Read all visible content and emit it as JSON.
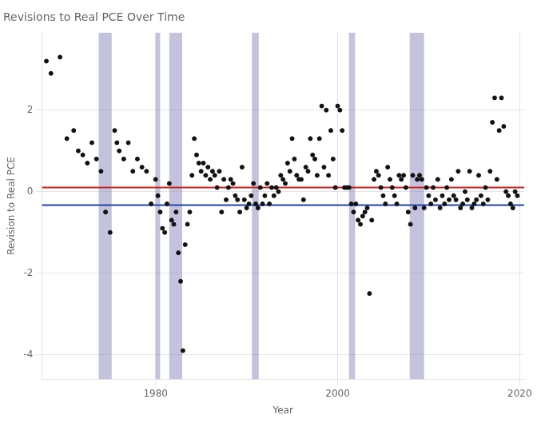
{
  "chart_data": {
    "type": "scatter",
    "title": "Revisions to Real PCE Over Time",
    "xlabel": "Year",
    "ylabel": "Revision to Real PCE",
    "color": "#111111",
    "grid": true,
    "xlim": [
      1967.5,
      2020.5
    ],
    "ylim": [
      -4.6,
      3.9
    ],
    "xticks": [
      1980,
      2000,
      2020
    ],
    "yticks": [
      -4,
      -2,
      0,
      2
    ],
    "bands": {
      "color": "#8888BB",
      "ranges": [
        [
          1973.75,
          1975.17
        ],
        [
          1980.0,
          1980.5
        ],
        [
          1981.5,
          1982.92
        ],
        [
          1990.58,
          1991.33
        ],
        [
          2001.25,
          2001.92
        ],
        [
          2007.92,
          2009.5
        ]
      ]
    },
    "hlines": [
      {
        "y": 0.1,
        "color": "#CC2222"
      },
      {
        "y": -0.33,
        "color": "#2244AA"
      }
    ],
    "x": [
      1968.0,
      1968.5,
      1969.5,
      1970.25,
      1971.0,
      1971.5,
      1972.0,
      1972.5,
      1973.0,
      1973.5,
      1974.0,
      1974.5,
      1975.0,
      1975.5,
      1975.75,
      1976.0,
      1976.5,
      1977.0,
      1977.5,
      1978.0,
      1978.5,
      1979.0,
      1979.5,
      1980.0,
      1980.25,
      1980.5,
      1980.75,
      1981.0,
      1981.25,
      1981.5,
      1981.75,
      1982.0,
      1982.25,
      1982.5,
      1982.75,
      1983.0,
      1983.25,
      1983.5,
      1983.75,
      1984.0,
      1984.25,
      1984.5,
      1984.75,
      1985.0,
      1985.25,
      1985.5,
      1985.75,
      1986.0,
      1986.25,
      1986.5,
      1986.75,
      1987.0,
      1987.25,
      1987.5,
      1987.75,
      1988.0,
      1988.25,
      1988.5,
      1988.75,
      1989.0,
      1989.25,
      1989.5,
      1989.75,
      1990.0,
      1990.25,
      1990.5,
      1990.75,
      1991.0,
      1991.25,
      1991.5,
      1991.75,
      1992.0,
      1992.25,
      1992.5,
      1992.75,
      1993.0,
      1993.25,
      1993.5,
      1993.75,
      1994.0,
      1994.25,
      1994.5,
      1994.75,
      1995.0,
      1995.25,
      1995.5,
      1995.75,
      1996.0,
      1996.25,
      1996.5,
      1996.75,
      1997.0,
      1997.25,
      1997.5,
      1997.75,
      1998.0,
      1998.25,
      1998.5,
      1998.75,
      1999.0,
      1999.25,
      1999.5,
      1999.75,
      2000.0,
      2000.25,
      2000.5,
      2000.75,
      2001.0,
      2001.25,
      2001.5,
      2001.75,
      2002.0,
      2002.25,
      2002.5,
      2002.75,
      2003.0,
      2003.25,
      2003.5,
      2003.75,
      2004.0,
      2004.25,
      2004.5,
      2004.75,
      2005.0,
      2005.25,
      2005.5,
      2005.75,
      2006.0,
      2006.25,
      2006.5,
      2006.75,
      2007.0,
      2007.25,
      2007.5,
      2007.75,
      2008.0,
      2008.25,
      2008.5,
      2008.75,
      2009.0,
      2009.25,
      2009.5,
      2009.75,
      2010.0,
      2010.25,
      2010.5,
      2010.75,
      2011.0,
      2011.25,
      2011.5,
      2011.75,
      2012.0,
      2012.25,
      2012.5,
      2012.75,
      2013.0,
      2013.25,
      2013.5,
      2013.75,
      2014.0,
      2014.25,
      2014.5,
      2014.75,
      2015.0,
      2015.25,
      2015.5,
      2015.75,
      2016.0,
      2016.25,
      2016.5,
      2016.75,
      2017.0,
      2017.25,
      2017.5,
      2017.75,
      2018.0,
      2018.25,
      2018.5,
      2018.75,
      2019.0,
      2019.25,
      2019.5,
      2019.75
    ],
    "values": [
      3.2,
      2.9,
      3.3,
      1.3,
      1.5,
      1.0,
      0.9,
      0.7,
      1.2,
      0.8,
      0.5,
      -0.5,
      -1.0,
      1.5,
      1.2,
      1.0,
      0.8,
      1.2,
      0.5,
      0.8,
      0.6,
      0.5,
      -0.3,
      0.3,
      -0.1,
      -0.5,
      -0.9,
      -1.0,
      -0.3,
      0.2,
      -0.7,
      -0.8,
      -0.5,
      -1.5,
      -2.2,
      -3.9,
      -1.3,
      -0.8,
      -0.5,
      0.4,
      1.3,
      0.9,
      0.7,
      0.5,
      0.7,
      0.4,
      0.6,
      0.3,
      0.5,
      0.4,
      0.1,
      0.5,
      -0.5,
      0.3,
      -0.2,
      0.1,
      0.3,
      0.2,
      -0.1,
      -0.2,
      -0.5,
      0.6,
      -0.2,
      -0.4,
      -0.3,
      -0.1,
      0.2,
      -0.3,
      -0.4,
      0.1,
      -0.3,
      -0.1,
      0.2,
      -0.3,
      0.1,
      -0.1,
      0.1,
      0.0,
      0.4,
      0.3,
      0.2,
      0.7,
      0.5,
      1.3,
      0.8,
      0.4,
      0.3,
      0.3,
      -0.2,
      0.6,
      0.5,
      1.3,
      0.9,
      0.8,
      0.4,
      1.3,
      2.1,
      0.6,
      2.0,
      0.4,
      1.5,
      0.8,
      0.1,
      2.1,
      2.0,
      1.5,
      0.1,
      0.1,
      0.1,
      -0.3,
      -0.5,
      -0.3,
      -0.7,
      -0.8,
      -0.6,
      -0.5,
      -0.4,
      -2.5,
      -0.7,
      0.3,
      0.5,
      0.4,
      0.1,
      -0.1,
      -0.3,
      0.6,
      0.3,
      0.1,
      -0.1,
      -0.3,
      0.4,
      0.3,
      0.4,
      0.1,
      -0.5,
      -0.8,
      0.4,
      -0.4,
      0.3,
      0.4,
      0.3,
      -0.4,
      0.1,
      -0.1,
      -0.3,
      0.1,
      -0.2,
      0.3,
      -0.4,
      -0.1,
      -0.3,
      0.1,
      -0.2,
      0.3,
      -0.1,
      -0.2,
      0.5,
      -0.4,
      -0.3,
      0.0,
      -0.2,
      0.5,
      -0.4,
      -0.3,
      -0.2,
      0.4,
      -0.1,
      -0.3,
      0.1,
      -0.2,
      0.5,
      1.7,
      2.3,
      0.3,
      1.5,
      2.3,
      1.6,
      0.0,
      -0.1,
      -0.3,
      -0.4,
      0.0,
      -0.1
    ]
  }
}
